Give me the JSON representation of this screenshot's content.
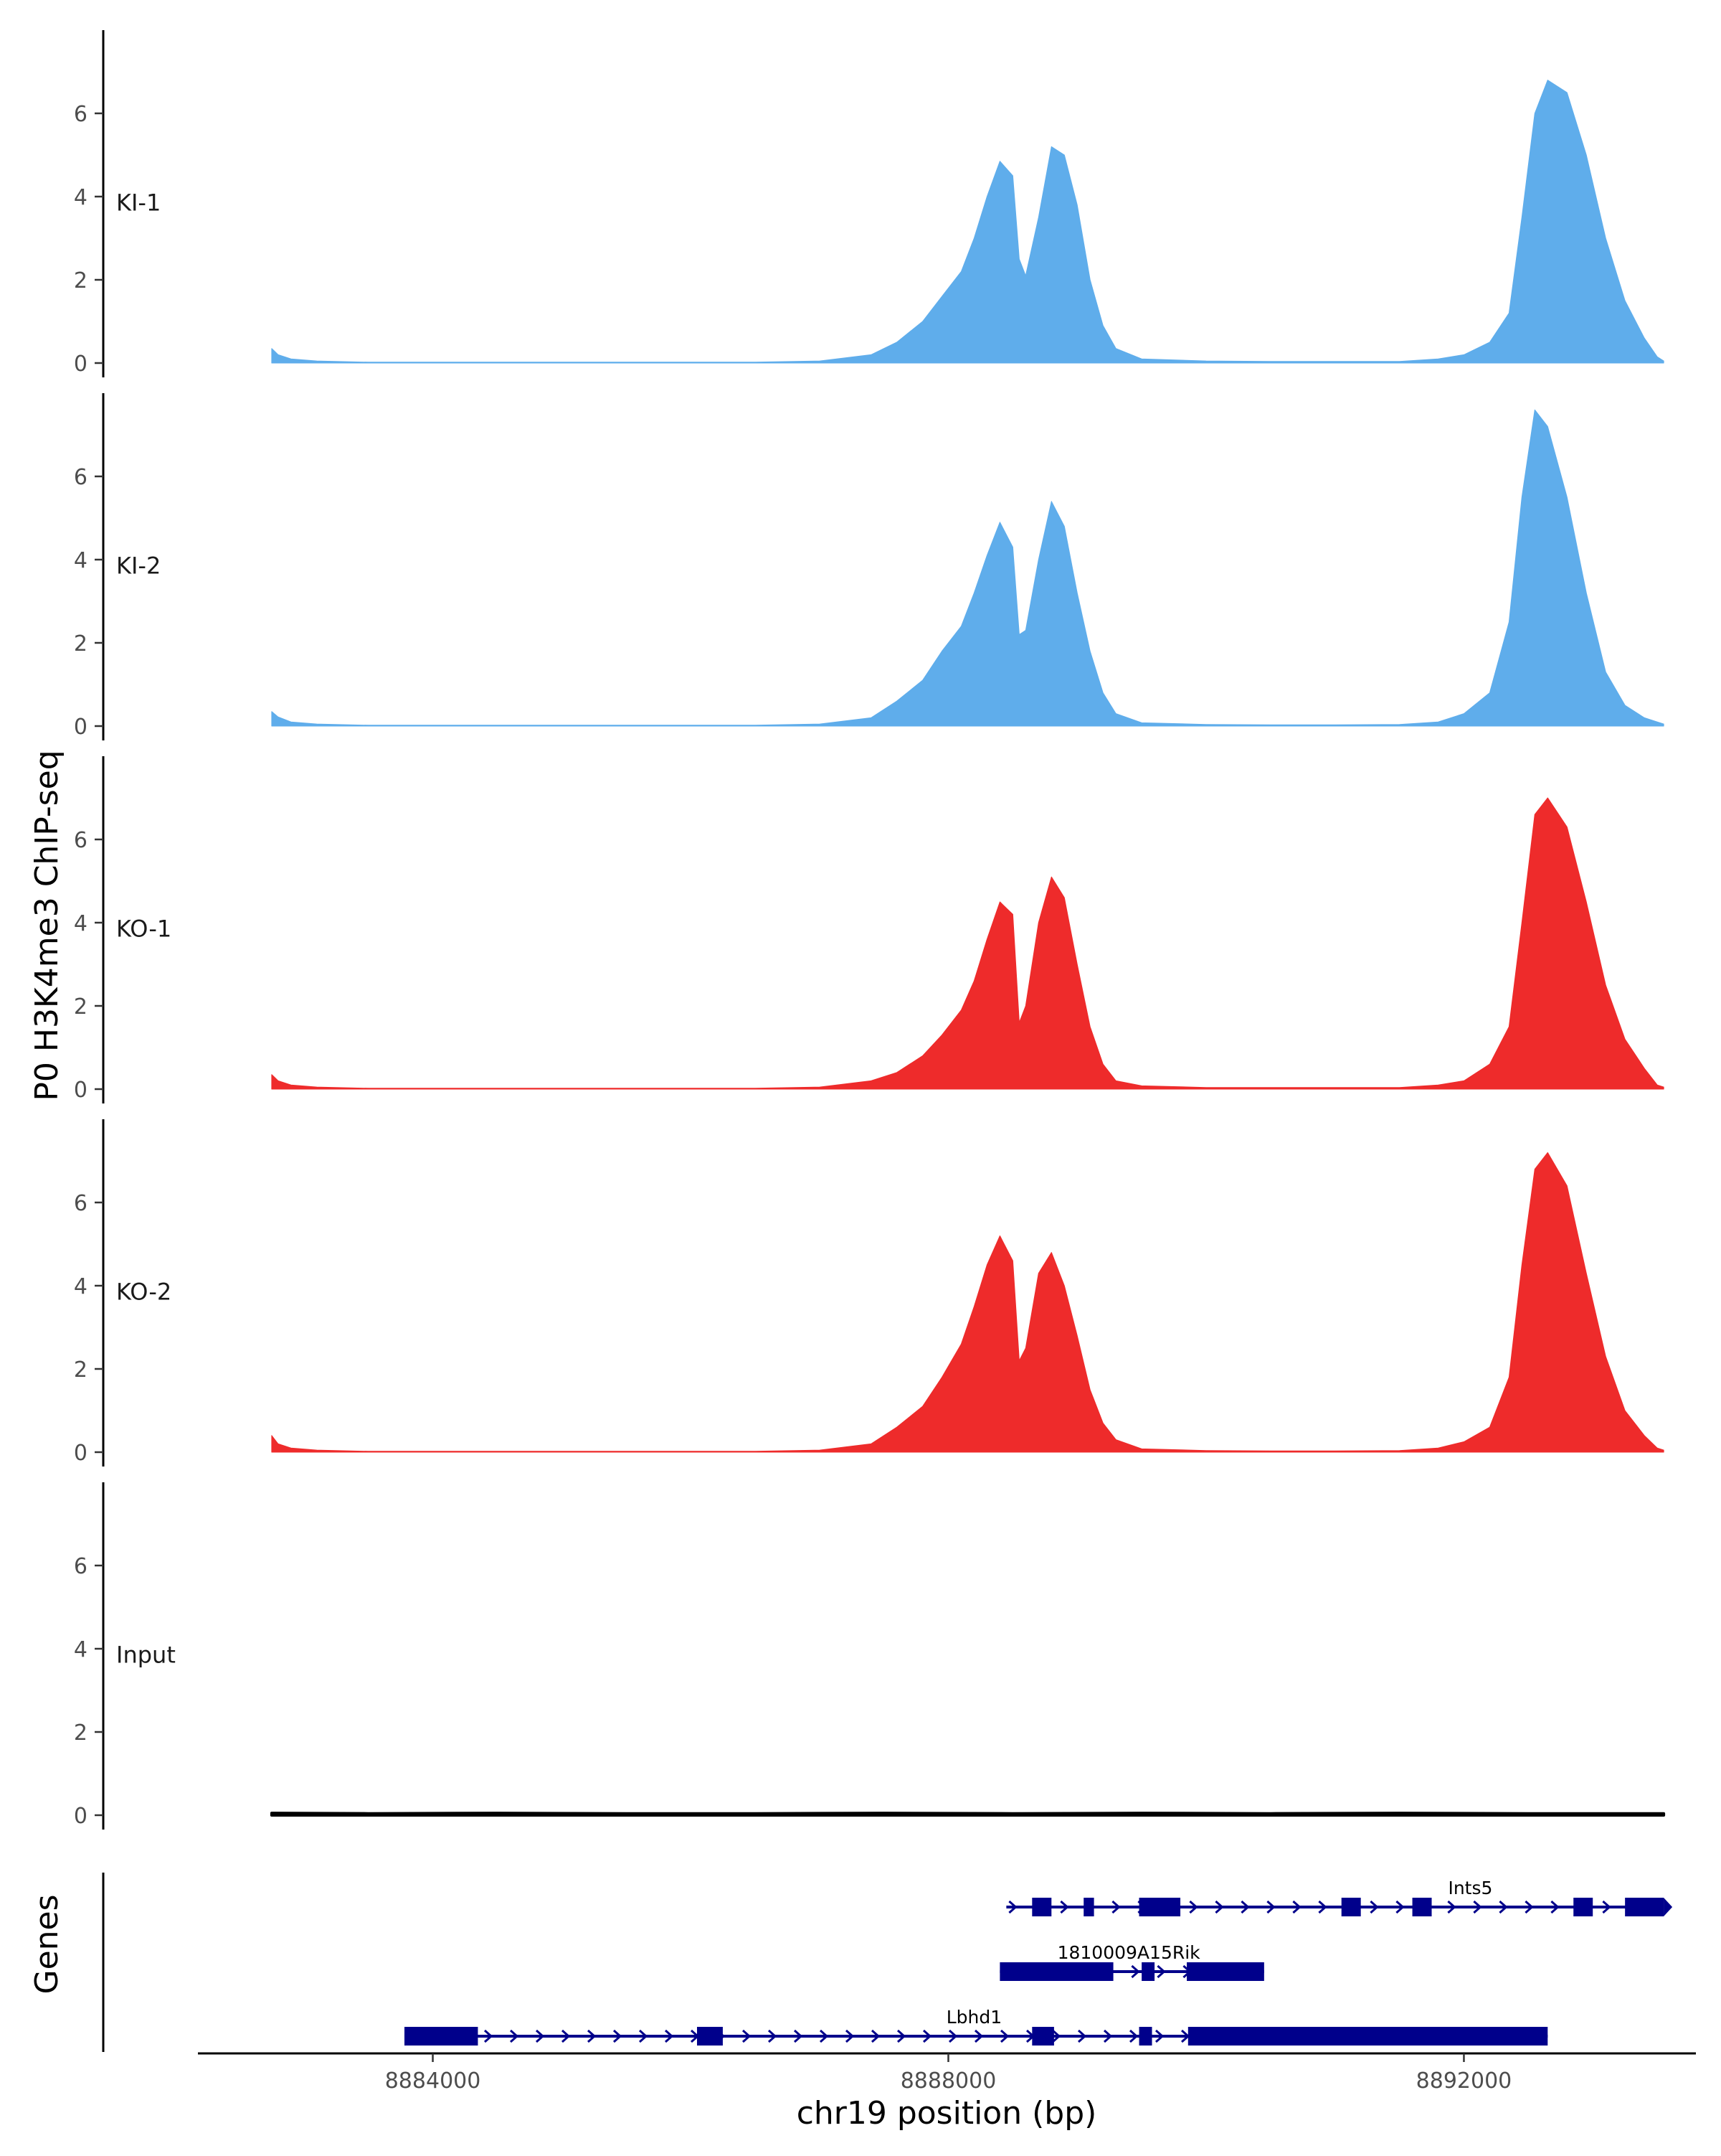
{
  "chart_data": {
    "type": "area",
    "ylabel": "P0 H3K4me3 ChIP-seq",
    "xlabel": "chr19 position (bp)",
    "genes_label": "Genes",
    "xlim": [
      8882200,
      8893800
    ],
    "x_ticks": [
      8884000,
      8888000,
      8892000
    ],
    "x_tick_labels": [
      "8884000",
      "8888000",
      "8892000"
    ],
    "ylim": [
      0,
      7.9
    ],
    "y_ticks": [
      0,
      2,
      4,
      6
    ],
    "y_tick_labels": [
      "0",
      "2",
      "4",
      "6"
    ],
    "colors": {
      "KI": "#5fadeb",
      "KO": "#ee2b2b",
      "Input": "#000000",
      "gene": "#00008b"
    },
    "tracks": [
      {
        "name": "KI-1",
        "color": "#5fadeb",
        "x": [
          8882750,
          8882800,
          8882900,
          8883100,
          8883500,
          8884500,
          8885500,
          8886500,
          8887000,
          8887400,
          8887600,
          8887800,
          8887950,
          8888100,
          8888200,
          8888300,
          8888400,
          8888500,
          8888550,
          8888600,
          8888700,
          8888800,
          8888900,
          8889000,
          8889100,
          8889200,
          8889300,
          8889500,
          8890000,
          8890500,
          8891000,
          8891500,
          8891800,
          8892000,
          8892200,
          8892350,
          8892450,
          8892550,
          8892650,
          8892800,
          8892950,
          8893100,
          8893250,
          8893400,
          8893500,
          8893550
        ],
        "y": [
          0.35,
          0.2,
          0.1,
          0.05,
          0.02,
          0.02,
          0.02,
          0.02,
          0.05,
          0.2,
          0.5,
          1.0,
          1.6,
          2.2,
          3.0,
          4.0,
          4.85,
          4.5,
          2.5,
          2.1,
          3.5,
          5.2,
          5.0,
          3.8,
          2.0,
          0.9,
          0.35,
          0.1,
          0.05,
          0.04,
          0.04,
          0.04,
          0.1,
          0.2,
          0.5,
          1.2,
          3.5,
          6.0,
          6.8,
          6.5,
          5.0,
          3.0,
          1.5,
          0.6,
          0.15,
          0.05
        ]
      },
      {
        "name": "KI-2",
        "color": "#5fadeb",
        "x": [
          8882750,
          8882800,
          8882900,
          8883100,
          8883500,
          8884500,
          8885500,
          8886500,
          8887000,
          8887400,
          8887600,
          8887800,
          8887950,
          8888100,
          8888200,
          8888300,
          8888400,
          8888500,
          8888550,
          8888600,
          8888700,
          8888800,
          8888900,
          8889000,
          8889100,
          8889200,
          8889300,
          8889500,
          8890000,
          8890500,
          8891000,
          8891500,
          8891800,
          8892000,
          8892200,
          8892350,
          8892450,
          8892550,
          8892650,
          8892800,
          8892950,
          8893100,
          8893250,
          8893400,
          8893500,
          8893550
        ],
        "y": [
          0.35,
          0.22,
          0.1,
          0.05,
          0.02,
          0.02,
          0.02,
          0.02,
          0.05,
          0.2,
          0.6,
          1.1,
          1.8,
          2.4,
          3.2,
          4.1,
          4.9,
          4.3,
          2.2,
          2.3,
          4.0,
          5.4,
          4.8,
          3.2,
          1.8,
          0.8,
          0.3,
          0.08,
          0.04,
          0.03,
          0.03,
          0.04,
          0.1,
          0.3,
          0.8,
          2.5,
          5.5,
          7.6,
          7.2,
          5.5,
          3.2,
          1.3,
          0.5,
          0.2,
          0.1,
          0.05
        ]
      },
      {
        "name": "KO-1",
        "color": "#ee2b2b",
        "x": [
          8882750,
          8882800,
          8882900,
          8883100,
          8883500,
          8884500,
          8885500,
          8886500,
          8887000,
          8887400,
          8887600,
          8887800,
          8887950,
          8888100,
          8888200,
          8888300,
          8888400,
          8888500,
          8888550,
          8888600,
          8888700,
          8888800,
          8888900,
          8889000,
          8889100,
          8889200,
          8889300,
          8889500,
          8890000,
          8890500,
          8891000,
          8891500,
          8891800,
          8892000,
          8892200,
          8892350,
          8892450,
          8892550,
          8892650,
          8892800,
          8892950,
          8893100,
          8893250,
          8893400,
          8893500,
          8893550
        ],
        "y": [
          0.35,
          0.2,
          0.1,
          0.05,
          0.02,
          0.02,
          0.02,
          0.02,
          0.05,
          0.2,
          0.4,
          0.8,
          1.3,
          1.9,
          2.6,
          3.6,
          4.5,
          4.2,
          1.6,
          2.0,
          4.0,
          5.1,
          4.6,
          3.0,
          1.5,
          0.6,
          0.2,
          0.08,
          0.04,
          0.04,
          0.04,
          0.04,
          0.1,
          0.2,
          0.6,
          1.5,
          4.0,
          6.6,
          7.0,
          6.3,
          4.5,
          2.5,
          1.2,
          0.5,
          0.1,
          0.05
        ]
      },
      {
        "name": "KO-2",
        "color": "#ee2b2b",
        "x": [
          8882750,
          8882800,
          8882900,
          8883100,
          8883500,
          8884500,
          8885500,
          8886500,
          8887000,
          8887400,
          8887600,
          8887800,
          8887950,
          8888100,
          8888200,
          8888300,
          8888400,
          8888500,
          8888550,
          8888600,
          8888700,
          8888800,
          8888900,
          8889000,
          8889100,
          8889200,
          8889300,
          8889500,
          8890000,
          8890500,
          8891000,
          8891500,
          8891800,
          8892000,
          8892200,
          8892350,
          8892450,
          8892550,
          8892650,
          8892800,
          8892950,
          8893100,
          8893250,
          8893400,
          8893500,
          8893550
        ],
        "y": [
          0.4,
          0.2,
          0.1,
          0.05,
          0.02,
          0.02,
          0.02,
          0.02,
          0.05,
          0.2,
          0.6,
          1.1,
          1.8,
          2.6,
          3.5,
          4.5,
          5.2,
          4.6,
          2.2,
          2.5,
          4.3,
          4.8,
          4.0,
          2.8,
          1.5,
          0.7,
          0.3,
          0.08,
          0.04,
          0.03,
          0.03,
          0.04,
          0.1,
          0.25,
          0.6,
          1.8,
          4.5,
          6.8,
          7.2,
          6.4,
          4.3,
          2.3,
          1.0,
          0.4,
          0.1,
          0.05
        ]
      },
      {
        "name": "Input",
        "color": "#000000",
        "x": [
          8882750,
          8883500,
          8884500,
          8885500,
          8886500,
          8887500,
          8888500,
          8889500,
          8890500,
          8891500,
          8892500,
          8893550
        ],
        "y": [
          0.05,
          0.04,
          0.05,
          0.04,
          0.04,
          0.05,
          0.04,
          0.05,
          0.04,
          0.05,
          0.04,
          0.04
        ]
      }
    ],
    "genes": [
      {
        "name": "Ints5",
        "strand": "+",
        "start": 8888450,
        "end": 8893550,
        "exons": [
          [
            8888650,
            8888800
          ],
          [
            8889050,
            8889130
          ],
          [
            8889480,
            8889800
          ],
          [
            8891050,
            8891200
          ],
          [
            8891600,
            8891750
          ],
          [
            8892850,
            8893000
          ],
          [
            8893250,
            8893550
          ]
        ]
      },
      {
        "name": "1810009A15Rik",
        "strand": "+",
        "start": 8888400,
        "end": 8890450,
        "exons": [
          [
            8888400,
            8889280
          ],
          [
            8889500,
            8889600
          ],
          [
            8889850,
            8890450
          ]
        ]
      },
      {
        "name": "Lbhd1",
        "strand": "+",
        "start": 8883780,
        "end": 8892650,
        "exons": [
          [
            8883780,
            8884350
          ],
          [
            8886050,
            8886250
          ],
          [
            8888650,
            8888820
          ],
          [
            8889480,
            8889580
          ],
          [
            8889860,
            8892650
          ]
        ]
      }
    ]
  }
}
